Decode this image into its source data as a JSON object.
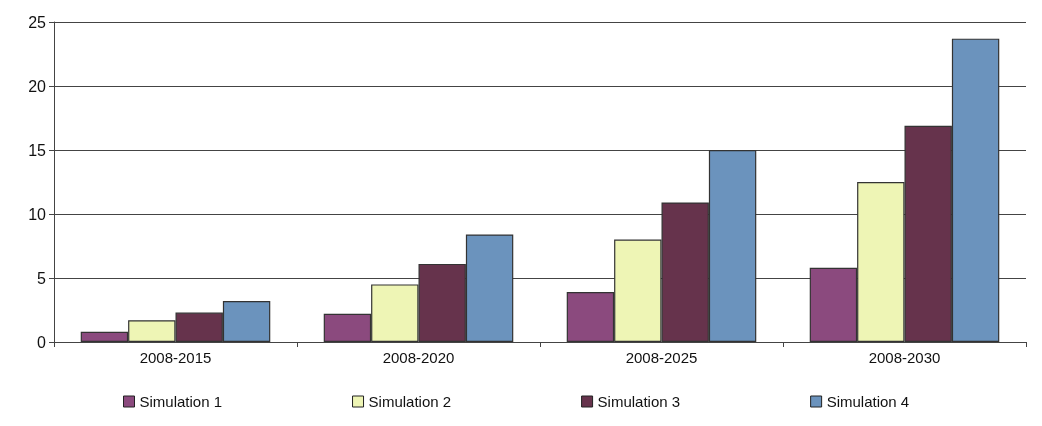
{
  "chart_data": {
    "type": "bar",
    "categories": [
      "2008-2015",
      "2008-2020",
      "2008-2025",
      "2008-2030"
    ],
    "series": [
      {
        "name": "Simulation 1",
        "color": "#8b4a7e",
        "values": [
          0.8,
          2.2,
          3.9,
          5.8
        ]
      },
      {
        "name": "Simulation 2",
        "color": "#eef5b5",
        "values": [
          1.7,
          4.5,
          8.0,
          12.5
        ]
      },
      {
        "name": "Simulation 3",
        "color": "#66334c",
        "values": [
          2.3,
          6.1,
          10.9,
          16.9
        ]
      },
      {
        "name": "Simulation 4",
        "color": "#6b93bd",
        "values": [
          3.2,
          8.4,
          15.0,
          23.7
        ]
      }
    ],
    "ylim": [
      0,
      25
    ],
    "yticks": [
      0,
      5,
      10,
      15,
      20,
      25
    ],
    "grid": "y",
    "legend": "bottom"
  }
}
